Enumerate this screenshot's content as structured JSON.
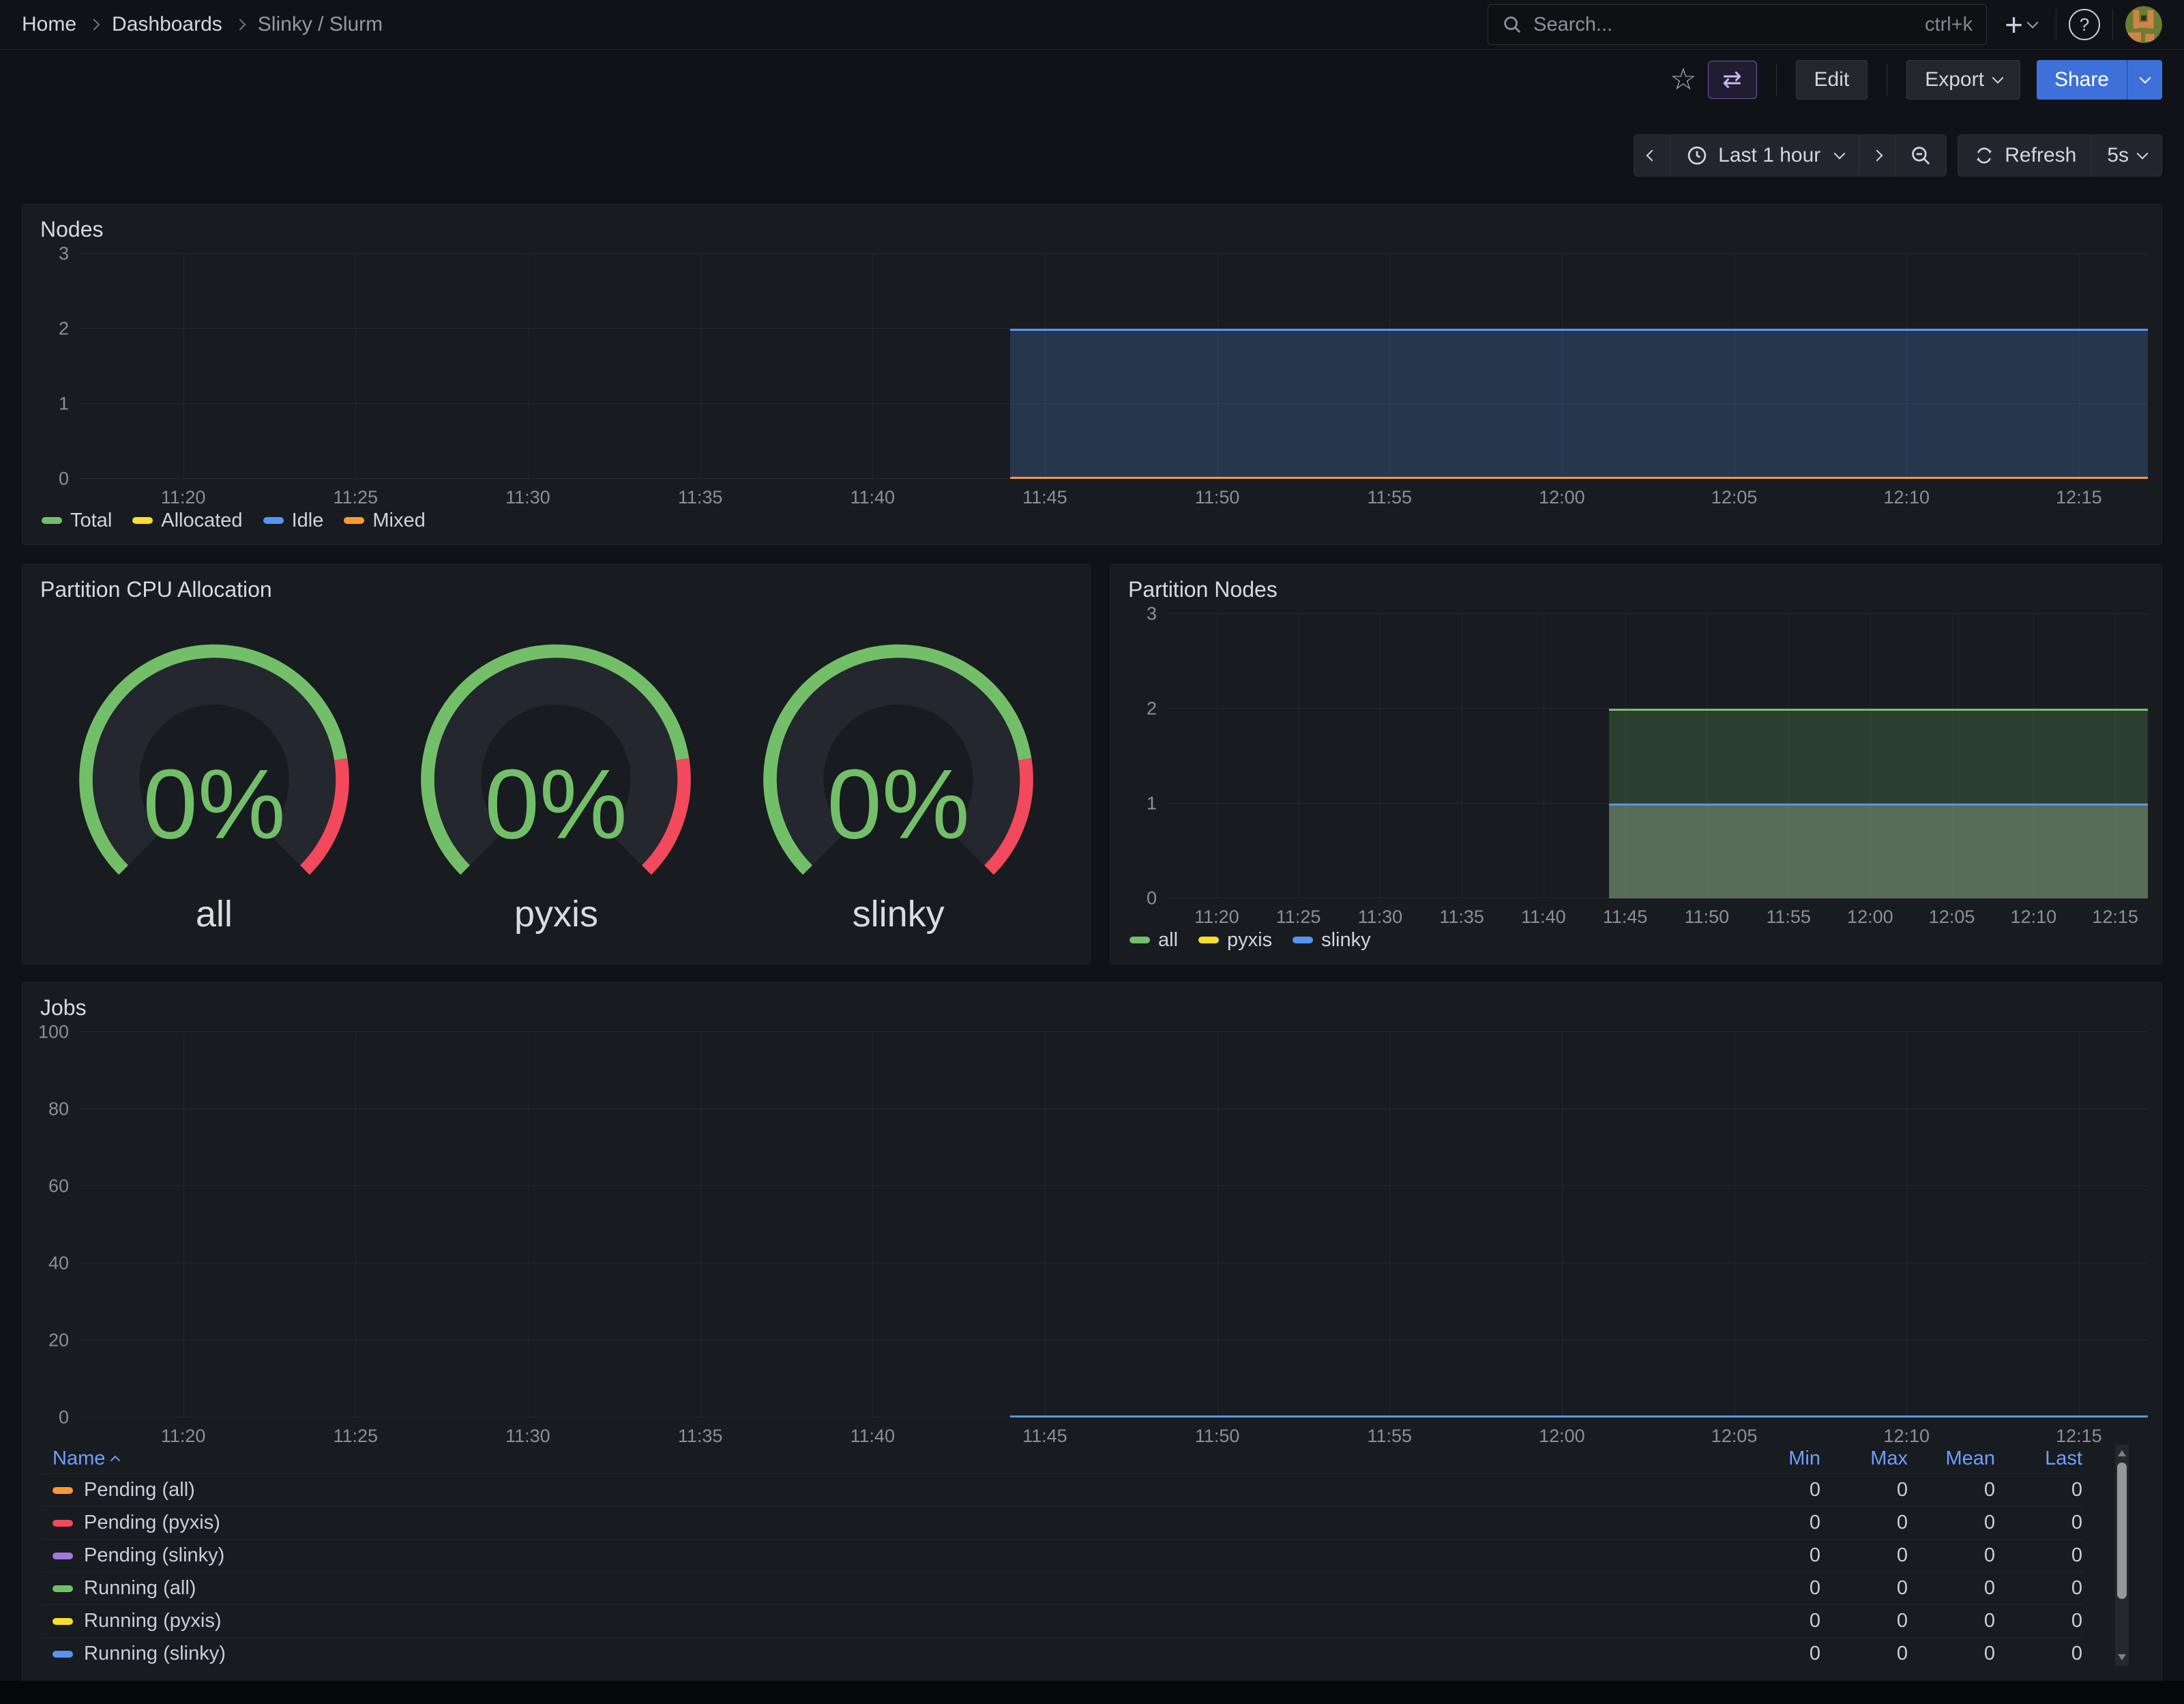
{
  "nav": {
    "breadcrumb": [
      {
        "label": "Home"
      },
      {
        "label": "Dashboards"
      },
      {
        "label": "Slinky / Slurm"
      }
    ],
    "search_placeholder": "Search...",
    "search_shortcut": "ctrl+k"
  },
  "toolbar": {
    "edit": "Edit",
    "export": "Export",
    "share": "Share"
  },
  "timebar": {
    "range": "Last 1 hour",
    "refresh": "Refresh",
    "interval": "5s"
  },
  "colors": {
    "accent_blue": "#3D71D9",
    "panel_bg": "#181b1f",
    "page_bg": "#111217",
    "green": "#73BF69",
    "yellow": "#FADE2A",
    "blue": "#5794F2",
    "orange": "#FF9830",
    "red": "#F2495C",
    "purple": "#A178DB"
  },
  "charts": {
    "nodes": {
      "type": "area",
      "title": "Nodes",
      "x_start": "11:17",
      "x_end": "12:17",
      "x_ticks": [
        "11:20",
        "11:25",
        "11:30",
        "11:35",
        "11:40",
        "11:45",
        "11:50",
        "11:55",
        "12:00",
        "12:05",
        "12:10",
        "12:15"
      ],
      "ylim": [
        0,
        3
      ],
      "y_ticks": [
        0,
        1,
        2,
        3
      ],
      "data_from": "11:44",
      "series": [
        {
          "name": "Total",
          "color": "#73BF69",
          "value": 2,
          "fill": 0
        },
        {
          "name": "Allocated",
          "color": "#FADE2A",
          "value": 0,
          "fill": 0
        },
        {
          "name": "Idle",
          "color": "#5794F2",
          "value": 2,
          "fill": 0.22
        },
        {
          "name": "Mixed",
          "color": "#FF9830",
          "value": 0,
          "fill": 0
        }
      ]
    },
    "partition_nodes": {
      "type": "area",
      "title": "Partition Nodes",
      "x_start": "11:17",
      "x_end": "12:17",
      "x_ticks": [
        "11:20",
        "11:25",
        "11:30",
        "11:35",
        "11:40",
        "11:45",
        "11:50",
        "11:55",
        "12:00",
        "12:05",
        "12:10",
        "12:15"
      ],
      "ylim": [
        0,
        3
      ],
      "y_ticks": [
        0,
        1,
        2,
        3
      ],
      "data_from": "11:44",
      "series": [
        {
          "name": "all",
          "color": "#73BF69",
          "value": 2,
          "fill": 0.22
        },
        {
          "name": "pyxis",
          "color": "#FADE2A",
          "value": 1,
          "fill": 0.22
        },
        {
          "name": "slinky",
          "color": "#5794F2",
          "value": 1,
          "fill": 0.22
        }
      ]
    },
    "jobs": {
      "type": "area",
      "title": "Jobs",
      "x_start": "11:17",
      "x_end": "12:17",
      "x_ticks": [
        "11:20",
        "11:25",
        "11:30",
        "11:35",
        "11:40",
        "11:45",
        "11:50",
        "11:55",
        "12:00",
        "12:05",
        "12:10",
        "12:15"
      ],
      "ylim": [
        0,
        100
      ],
      "y_ticks": [
        0,
        20,
        40,
        60,
        80,
        100
      ],
      "data_from": "11:44",
      "series": [
        {
          "name": "Pending (all)",
          "color": "#FF9830",
          "value": 0,
          "fill": 0
        },
        {
          "name": "Pending (pyxis)",
          "color": "#F2495C",
          "value": 0,
          "fill": 0
        },
        {
          "name": "Pending (slinky)",
          "color": "#A178DB",
          "value": 0,
          "fill": 0
        },
        {
          "name": "Running (all)",
          "color": "#73BF69",
          "value": 0,
          "fill": 0
        },
        {
          "name": "Running (pyxis)",
          "color": "#FADE2A",
          "value": 0,
          "fill": 0
        },
        {
          "name": "Running (slinky)",
          "color": "#5794F2",
          "value": 0,
          "fill": 0
        }
      ]
    }
  },
  "gauges": {
    "title": "Partition CPU Allocation",
    "value_color": "#73BF69",
    "band": {
      "ok_color": "#73BF69",
      "alert_color": "#F2495C"
    },
    "items": [
      {
        "value": "0%",
        "label": "all"
      },
      {
        "value": "0%",
        "label": "pyxis"
      },
      {
        "value": "0%",
        "label": "slinky"
      }
    ]
  },
  "jobs_table": {
    "name_header": "Name",
    "stat_headers": [
      "Min",
      "Max",
      "Mean",
      "Last"
    ],
    "rows": [
      {
        "name": "Pending (all)",
        "color": "#FF9830",
        "values": [
          "0",
          "0",
          "0",
          "0"
        ]
      },
      {
        "name": "Pending (pyxis)",
        "color": "#F2495C",
        "values": [
          "0",
          "0",
          "0",
          "0"
        ]
      },
      {
        "name": "Pending (slinky)",
        "color": "#A178DB",
        "values": [
          "0",
          "0",
          "0",
          "0"
        ]
      },
      {
        "name": "Running (all)",
        "color": "#73BF69",
        "values": [
          "0",
          "0",
          "0",
          "0"
        ]
      },
      {
        "name": "Running (pyxis)",
        "color": "#FADE2A",
        "values": [
          "0",
          "0",
          "0",
          "0"
        ]
      },
      {
        "name": "Running (slinky)",
        "color": "#5794F2",
        "values": [
          "0",
          "0",
          "0",
          "0"
        ]
      }
    ]
  }
}
